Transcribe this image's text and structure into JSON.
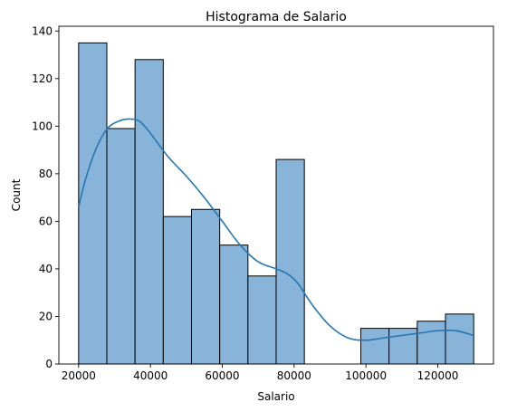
{
  "chart_data": {
    "type": "bar",
    "title": "Histograma de Salario",
    "xlabel": "Salario",
    "ylabel": "Count",
    "xlim": [
      14500,
      135500
    ],
    "ylim": [
      0,
      142
    ],
    "grid": false,
    "bar_color": "#87b4d8",
    "edge_color": "#000000",
    "kde_color": "#2477b5",
    "bins": [
      {
        "x0": 20000,
        "x1": 27857,
        "count": 135
      },
      {
        "x0": 27857,
        "x1": 35714,
        "count": 99
      },
      {
        "x0": 35714,
        "x1": 43571,
        "count": 128
      },
      {
        "x0": 43571,
        "x1": 51429,
        "count": 62
      },
      {
        "x0": 51429,
        "x1": 59286,
        "count": 65
      },
      {
        "x0": 59286,
        "x1": 67143,
        "count": 50
      },
      {
        "x0": 67143,
        "x1": 75000,
        "count": 37
      },
      {
        "x0": 75000,
        "x1": 82857,
        "count": 86
      },
      {
        "x0": 82857,
        "x1": 90714,
        "count": 0
      },
      {
        "x0": 90714,
        "x1": 98571,
        "count": 0
      },
      {
        "x0": 98571,
        "x1": 106429,
        "count": 15
      },
      {
        "x0": 106429,
        "x1": 114286,
        "count": 15
      },
      {
        "x0": 114286,
        "x1": 122143,
        "count": 18
      },
      {
        "x0": 122143,
        "x1": 130000,
        "count": 21
      }
    ],
    "kde": {
      "x": [
        20000,
        22000,
        25000,
        28000,
        31000,
        34000,
        37000,
        40000,
        45000,
        50000,
        55000,
        60000,
        65000,
        70000,
        75000,
        78000,
        81000,
        85000,
        90000,
        95000,
        100000,
        105000,
        110000,
        115000,
        120000,
        125000,
        130000
      ],
      "y": [
        66,
        78,
        91,
        99,
        102,
        103,
        102,
        97,
        87,
        79,
        70,
        60,
        50,
        43,
        40,
        38,
        34,
        25,
        16,
        11,
        10,
        11,
        12,
        13,
        14,
        14,
        12
      ]
    },
    "x_ticks": [
      {
        "value": 20000,
        "label": "20000"
      },
      {
        "value": 40000,
        "label": "40000"
      },
      {
        "value": 60000,
        "label": "60000"
      },
      {
        "value": 80000,
        "label": "80000"
      },
      {
        "value": 100000,
        "label": "100000"
      },
      {
        "value": 120000,
        "label": "120000"
      }
    ],
    "y_ticks": [
      {
        "value": 0,
        "label": "0"
      },
      {
        "value": 20,
        "label": "20"
      },
      {
        "value": 40,
        "label": "40"
      },
      {
        "value": 60,
        "label": "60"
      },
      {
        "value": 80,
        "label": "80"
      },
      {
        "value": 100,
        "label": "100"
      },
      {
        "value": 120,
        "label": "120"
      },
      {
        "value": 140,
        "label": "140"
      }
    ]
  }
}
